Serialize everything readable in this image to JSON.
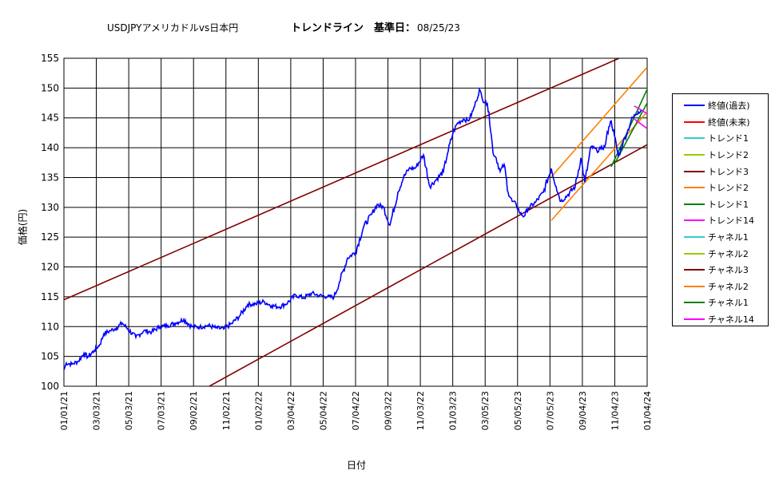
{
  "title": {
    "left": "USDJPYアメリカドルvs日本円",
    "right": "トレンドライン　基準日：",
    "date": "08/25/23"
  },
  "chart_data": {
    "type": "line",
    "xlabel": "日付",
    "ylabel": "価格(円)",
    "ylim": [
      100,
      155
    ],
    "y_ticks": [
      "100",
      "105",
      "110",
      "115",
      "120",
      "125",
      "130",
      "135",
      "140",
      "145",
      "150",
      "155"
    ],
    "x_ticks": [
      "01/01/21",
      "03/03/21",
      "05/03/21",
      "07/03/21",
      "09/02/21",
      "11/02/21",
      "01/02/22",
      "03/04/22",
      "05/04/22",
      "07/04/22",
      "09/03/22",
      "11/03/22",
      "01/03/23",
      "03/05/23",
      "05/05/23",
      "07/05/23",
      "09/04/23",
      "11/04/23",
      "01/04/24"
    ],
    "grid": true,
    "legend_position": "right",
    "legend": [
      {
        "label": "終値(過去)",
        "color": "#0000ff"
      },
      {
        "label": "終値(未来)",
        "color": "#ff0000"
      },
      {
        "label": "トレンド1",
        "color": "#33cccc"
      },
      {
        "label": "トレンド2",
        "color": "#99cc00"
      },
      {
        "label": "トレンド3",
        "color": "#800000"
      },
      {
        "label": "トレンド2",
        "color": "#ff8000"
      },
      {
        "label": "トレンド1",
        "color": "#008000"
      },
      {
        "label": "トレンド14",
        "color": "#ff00ff"
      },
      {
        "label": "チャネル1",
        "color": "#33cccc"
      },
      {
        "label": "チャネル2",
        "color": "#99cc00"
      },
      {
        "label": "チャネル3",
        "color": "#800000"
      },
      {
        "label": "チャネル2",
        "color": "#ff8000"
      },
      {
        "label": "チャネル1",
        "color": "#008000"
      },
      {
        "label": "チャネル14",
        "color": "#ff00ff"
      }
    ],
    "price_series": {
      "name": "終値(過去)",
      "color": "#0000ff",
      "points": [
        [
          0,
          102.7
        ],
        [
          3,
          103.9
        ],
        [
          10,
          103.7
        ],
        [
          18,
          104.2
        ],
        [
          25,
          105.5
        ],
        [
          30,
          104.9
        ],
        [
          38,
          106.0
        ],
        [
          45,
          107.0
        ],
        [
          50,
          108.8
        ],
        [
          58,
          109.3
        ],
        [
          66,
          109.8
        ],
        [
          73,
          110.6
        ],
        [
          80,
          109.6
        ],
        [
          90,
          108.2
        ],
        [
          100,
          109.3
        ],
        [
          110,
          109.1
        ],
        [
          120,
          110.0
        ],
        [
          130,
          110.2
        ],
        [
          140,
          110.6
        ],
        [
          150,
          111.2
        ],
        [
          160,
          110.0
        ],
        [
          170,
          109.9
        ],
        [
          180,
          110.2
        ],
        [
          190,
          109.8
        ],
        [
          200,
          109.6
        ],
        [
          210,
          110.5
        ],
        [
          220,
          111.8
        ],
        [
          230,
          113.7
        ],
        [
          240,
          113.8
        ],
        [
          250,
          114.2
        ],
        [
          260,
          113.5
        ],
        [
          270,
          113.3
        ],
        [
          280,
          114.0
        ],
        [
          290,
          115.3
        ],
        [
          300,
          114.8
        ],
        [
          310,
          115.6
        ],
        [
          320,
          115.2
        ],
        [
          330,
          115.0
        ],
        [
          338,
          114.9
        ],
        [
          345,
          117.5
        ],
        [
          355,
          121.5
        ],
        [
          365,
          122.5
        ],
        [
          375,
          126.7
        ],
        [
          385,
          128.8
        ],
        [
          392,
          130.5
        ],
        [
          400,
          130.0
        ],
        [
          408,
          127.0
        ],
        [
          418,
          132.5
        ],
        [
          425,
          135.0
        ],
        [
          432,
          136.5
        ],
        [
          440,
          136.6
        ],
        [
          450,
          138.8
        ],
        [
          458,
          133.5
        ],
        [
          465,
          134.5
        ],
        [
          475,
          136.0
        ],
        [
          480,
          139.0
        ],
        [
          487,
          142.5
        ],
        [
          492,
          144.0
        ],
        [
          500,
          144.8
        ],
        [
          506,
          144.5
        ],
        [
          512,
          146.2
        ],
        [
          516,
          147.8
        ],
        [
          520,
          149.8
        ],
        [
          524,
          148.0
        ],
        [
          528,
          147.8
        ],
        [
          532,
          146.0
        ],
        [
          537,
          139.2
        ],
        [
          541,
          138.3
        ],
        [
          546,
          136.0
        ],
        [
          551,
          137.2
        ],
        [
          556,
          132.5
        ],
        [
          561,
          131.0
        ],
        [
          566,
          130.5
        ],
        [
          571,
          129.0
        ],
        [
          576,
          128.5
        ],
        [
          581,
          129.8
        ],
        [
          590,
          130.8
        ],
        [
          600,
          132.5
        ],
        [
          610,
          136.5
        ],
        [
          616,
          133.5
        ],
        [
          622,
          131.0
        ],
        [
          630,
          132.0
        ],
        [
          640,
          133.5
        ],
        [
          647,
          138.3
        ],
        [
          652,
          134.2
        ],
        [
          660,
          140.2
        ],
        [
          667,
          139.5
        ],
        [
          672,
          139.8
        ],
        [
          677,
          140.2
        ],
        [
          682,
          143.5
        ],
        [
          685,
          144.5
        ],
        [
          689,
          142.0
        ],
        [
          694,
          138.5
        ],
        [
          700,
          141.0
        ],
        [
          705,
          142.5
        ],
        [
          710,
          144.6
        ],
        [
          715,
          145.5
        ],
        [
          719,
          146.0
        ],
        [
          723,
          146.3
        ]
      ]
    },
    "lines": [
      {
        "name": "トレンド3",
        "color": "#800000",
        "from": [
          0,
          114.5
        ],
        "to": [
          695,
          155.0
        ]
      },
      {
        "name": "チャネル3",
        "color": "#800000",
        "from": [
          182,
          100.0
        ],
        "to": [
          730,
          140.5
        ]
      },
      {
        "name": "トレンド2",
        "color": "#ff8000",
        "from": [
          610,
          135.1
        ],
        "to": [
          730,
          153.5
        ]
      },
      {
        "name": "チャネル2",
        "color": "#ff8000",
        "from": [
          610,
          127.8
        ],
        "to": [
          730,
          146.0
        ]
      },
      {
        "name": "トレンド1",
        "color": "#008000",
        "from": [
          690,
          137.5
        ],
        "to": [
          760,
          155.0
        ]
      },
      {
        "name": "チャネル1",
        "color": "#008000",
        "from": [
          685,
          136.8
        ],
        "to": [
          748,
          155.0
        ]
      },
      {
        "name": "トレンド14",
        "color": "#ff00ff",
        "from": [
          714,
          147.0
        ],
        "to": [
          730,
          145.7
        ]
      },
      {
        "name": "チャネル14",
        "color": "#ff00ff",
        "from": [
          714,
          144.8
        ],
        "to": [
          730,
          143.2
        ]
      }
    ],
    "x_range": [
      0,
      730
    ]
  }
}
